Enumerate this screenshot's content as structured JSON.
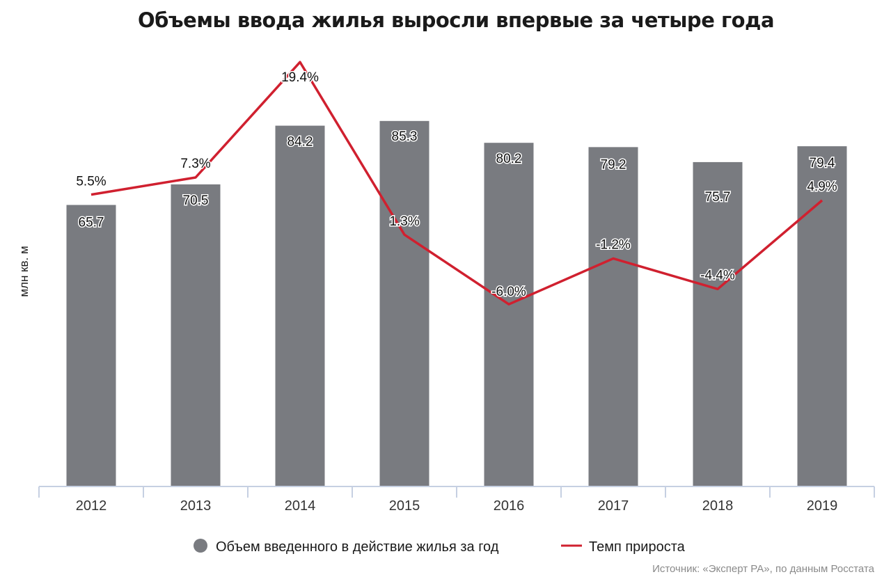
{
  "chart_data": {
    "type": "bar",
    "title": "Объемы ввода жилья выросли впервые за четыре года",
    "ylabel": "млн кв. м",
    "xlabel": "",
    "categories": [
      "2012",
      "2013",
      "2014",
      "2015",
      "2016",
      "2017",
      "2018",
      "2019"
    ],
    "bar_series": {
      "name": "Объем введенного в действие жилья за год",
      "values": [
        65.7,
        70.5,
        84.2,
        85.3,
        80.2,
        79.2,
        75.7,
        79.4
      ],
      "labels": [
        "65.7",
        "70.5",
        "84.2",
        "85.3",
        "80.2",
        "79.2",
        "75.7",
        "79.4"
      ],
      "color": "#797b80",
      "ylim": [
        0,
        100
      ]
    },
    "line_series": {
      "name": "Темп прироста",
      "values": [
        5.5,
        7.3,
        19.4,
        1.3,
        -6.0,
        -1.2,
        -4.4,
        4.9
      ],
      "labels": [
        "5.5%",
        "7.3%",
        "19.4%",
        "1.3%",
        "-6.0%",
        "-1.2%",
        "-4.4%",
        "4.9%"
      ],
      "color": "#d0202f",
      "ylim": [
        -40,
        23
      ]
    },
    "grid": false,
    "legend_position": "bottom"
  },
  "source": "Источник: «Эксперт РА», по данным Росстата"
}
